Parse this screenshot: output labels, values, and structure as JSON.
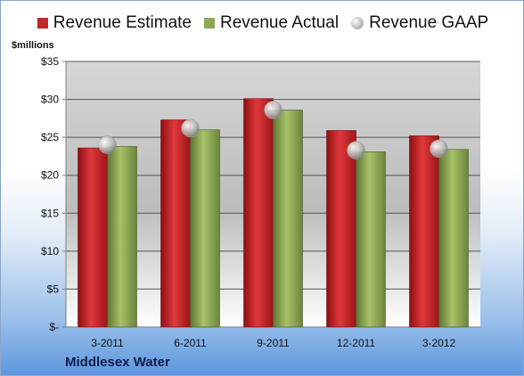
{
  "chart_data": {
    "type": "bar",
    "categories": [
      "3-2011",
      "6-2011",
      "9-2011",
      "12-2011",
      "3-2012"
    ],
    "series": [
      {
        "name": "Revenue Estimate",
        "kind": "bar",
        "color": "#c0262a",
        "values": [
          23.6,
          27.3,
          30.1,
          25.9,
          25.2
        ]
      },
      {
        "name": "Revenue Actual",
        "kind": "bar",
        "color": "#8fa855",
        "values": [
          23.8,
          26.0,
          28.6,
          23.1,
          23.4
        ]
      },
      {
        "name": "Revenue GAAP",
        "kind": "marker",
        "color": "#b9b9b9",
        "values": [
          24.0,
          26.2,
          28.6,
          23.3,
          23.5
        ]
      }
    ],
    "ylabel": "$millions",
    "ylim": [
      0,
      35
    ],
    "yticks": [
      0,
      5,
      10,
      15,
      20,
      25,
      30,
      35
    ],
    "ytick_labels": [
      "$-",
      "$5",
      "$10",
      "$15",
      "$20",
      "$25",
      "$30",
      "$35"
    ],
    "grid": true,
    "legend_position": "top"
  },
  "company": "Middlesex Water"
}
